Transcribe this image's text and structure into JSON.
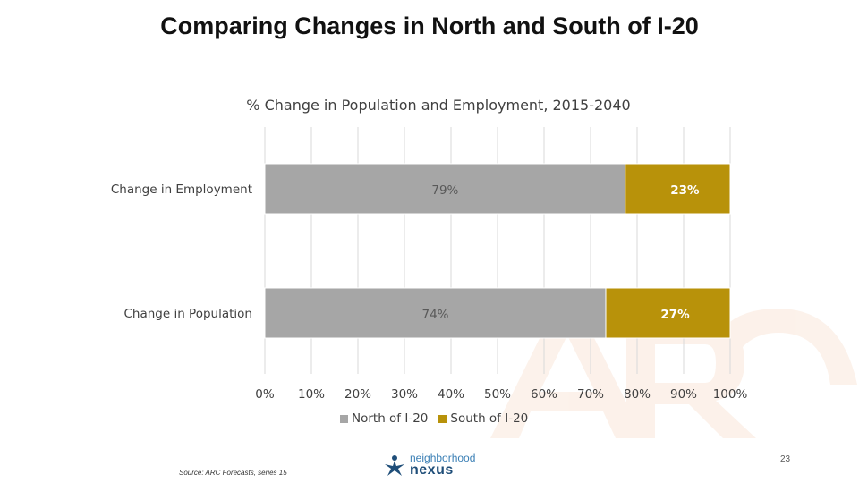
{
  "slide": {
    "title": "Comparing Changes in North and South of I-20",
    "source": "Source: ARC Forecasts, series 15",
    "page_number": "23",
    "logo": {
      "line1": "neighborhood",
      "line2": "nexus"
    },
    "watermark": "ARC"
  },
  "chart_data": {
    "type": "bar",
    "orientation": "horizontal",
    "stacked": true,
    "percent_stacked": true,
    "title": "% Change in Population and Employment, 2015-2040",
    "categories": [
      "Change in Employment",
      "Change in Population"
    ],
    "series": [
      {
        "name": "North of I-20",
        "color": "#a6a6a6",
        "values": [
          79,
          74
        ],
        "labels": [
          "79%",
          "74%"
        ],
        "label_color": "#595959",
        "label_bold": false
      },
      {
        "name": "South of I-20",
        "color": "#b8920a",
        "values": [
          23,
          27
        ],
        "labels": [
          "23%",
          "27%"
        ],
        "label_color": "#ffffff",
        "label_bold": true
      }
    ],
    "xlim": [
      0,
      100
    ],
    "x_ticks": [
      0,
      10,
      20,
      30,
      40,
      50,
      60,
      70,
      80,
      90,
      100
    ],
    "x_tick_labels": [
      "0%",
      "10%",
      "20%",
      "30%",
      "40%",
      "50%",
      "60%",
      "70%",
      "80%",
      "90%",
      "100%"
    ],
    "grid": true,
    "legend_position": "bottom"
  }
}
